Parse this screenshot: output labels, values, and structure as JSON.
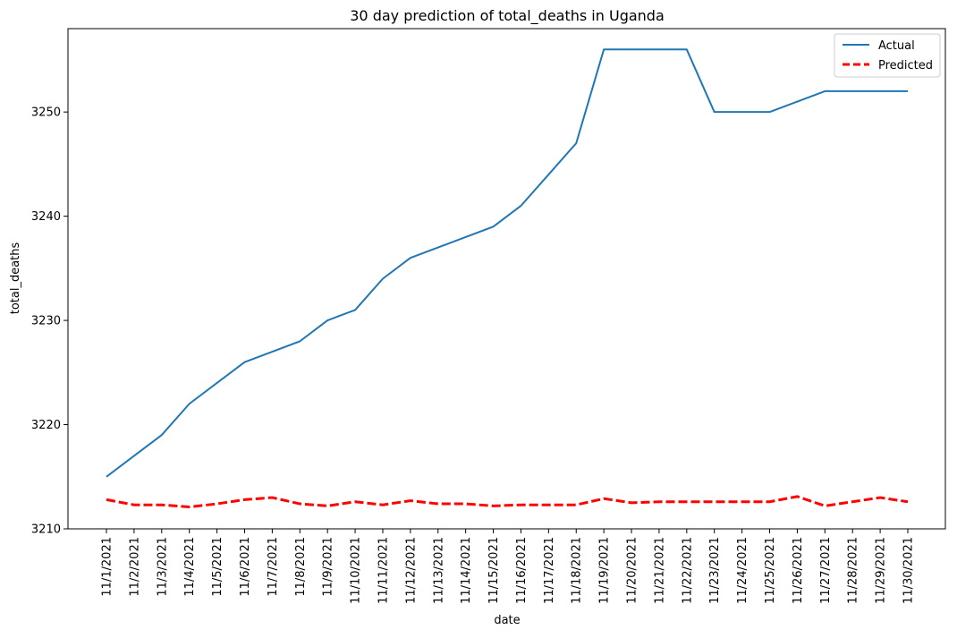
{
  "chart_data": {
    "type": "line",
    "title": "30 day prediction of total_deaths in Uganda",
    "xlabel": "date",
    "ylabel": "total_deaths",
    "categories": [
      "11/1/2021",
      "11/2/2021",
      "11/3/2021",
      "11/4/2021",
      "11/5/2021",
      "11/6/2021",
      "11/7/2021",
      "11/8/2021",
      "11/9/2021",
      "11/10/2021",
      "11/11/2021",
      "11/12/2021",
      "11/13/2021",
      "11/14/2021",
      "11/15/2021",
      "11/16/2021",
      "11/17/2021",
      "11/18/2021",
      "11/19/2021",
      "11/20/2021",
      "11/21/2021",
      "11/22/2021",
      "11/23/2021",
      "11/24/2021",
      "11/25/2021",
      "11/26/2021",
      "11/27/2021",
      "11/28/2021",
      "11/29/2021",
      "11/30/2021"
    ],
    "ylim": [
      3210,
      3258
    ],
    "yticks": [
      3210,
      3220,
      3230,
      3240,
      3250
    ],
    "grid": false,
    "legend_position": "top-right",
    "series": [
      {
        "name": "Actual",
        "color": "#1f77b4",
        "style": "solid",
        "values": [
          3215,
          3217,
          3219,
          3222,
          3224,
          3226,
          3227,
          3228,
          3230,
          3231,
          3234,
          3236,
          3237,
          3238,
          3239,
          3241,
          3244,
          3247,
          3256,
          3256,
          3256,
          3256,
          3250,
          3250,
          3250,
          3251,
          3252,
          3252,
          3252,
          3252
        ]
      },
      {
        "name": "Predicted",
        "color": "#ff0000",
        "style": "dashed",
        "values": [
          3212.8,
          3212.3,
          3212.3,
          3212.1,
          3212.4,
          3212.8,
          3213.0,
          3212.4,
          3212.2,
          3212.6,
          3212.3,
          3212.7,
          3212.4,
          3212.4,
          3212.2,
          3212.3,
          3212.3,
          3212.3,
          3212.9,
          3212.5,
          3212.6,
          3212.6,
          3212.6,
          3212.6,
          3212.6,
          3213.1,
          3212.2,
          3212.6,
          3213.0,
          3212.6
        ]
      }
    ]
  }
}
